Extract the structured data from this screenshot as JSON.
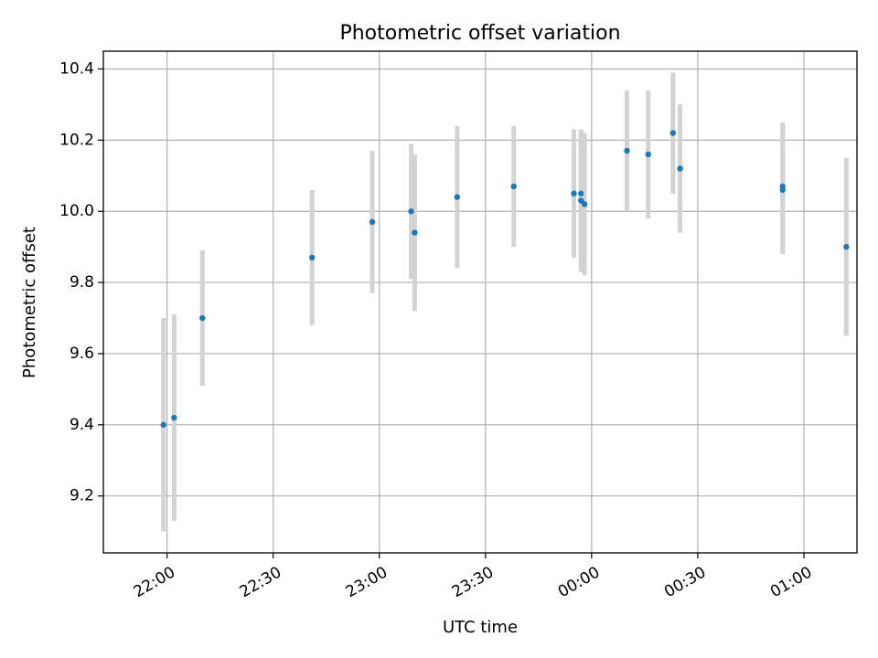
{
  "chart_data": {
    "type": "scatter",
    "title": "Photometric offset variation",
    "xlabel": "UTC time",
    "ylabel": "Photometric offset",
    "grid": true,
    "x_axis_type": "time",
    "xlim": [
      "21:42",
      "01:15"
    ],
    "ylim": [
      9.04,
      10.45
    ],
    "x_ticks": [
      "22:00",
      "22:30",
      "23:00",
      "23:30",
      "00:00",
      "00:30",
      "01:00"
    ],
    "y_ticks": [
      9.2,
      9.4,
      9.6,
      9.8,
      10.0,
      10.2,
      10.4
    ],
    "marker_color": "#1f77b4",
    "errorbar_color": "#d3d3d3",
    "series": [
      {
        "points": [
          {
            "x": "21:59",
            "y": 9.4,
            "err": 0.3
          },
          {
            "x": "22:02",
            "y": 9.42,
            "err": 0.29
          },
          {
            "x": "22:10",
            "y": 9.7,
            "err": 0.19
          },
          {
            "x": "22:41",
            "y": 9.87,
            "err": 0.19
          },
          {
            "x": "22:58",
            "y": 9.97,
            "err": 0.2
          },
          {
            "x": "23:09",
            "y": 10.0,
            "err": 0.19
          },
          {
            "x": "23:10",
            "y": 9.94,
            "err": 0.22
          },
          {
            "x": "23:22",
            "y": 10.04,
            "err": 0.2
          },
          {
            "x": "23:38",
            "y": 10.07,
            "err": 0.17
          },
          {
            "x": "23:55",
            "y": 10.05,
            "err": 0.18
          },
          {
            "x": "23:57",
            "y": 10.05,
            "err": 0.18
          },
          {
            "x": "23:57",
            "y": 10.03,
            "err": 0.2
          },
          {
            "x": "23:58",
            "y": 10.02,
            "err": 0.2
          },
          {
            "x": "00:10",
            "y": 10.17,
            "err": 0.17
          },
          {
            "x": "00:16",
            "y": 10.16,
            "err": 0.18
          },
          {
            "x": "00:23",
            "y": 10.22,
            "err": 0.17
          },
          {
            "x": "00:25",
            "y": 10.12,
            "err": 0.18
          },
          {
            "x": "00:25",
            "y": 10.12,
            "err": 0.18
          },
          {
            "x": "00:54",
            "y": 10.07,
            "err": 0.18
          },
          {
            "x": "00:54",
            "y": 10.06,
            "err": 0.18
          },
          {
            "x": "01:12",
            "y": 9.9,
            "err": 0.25
          }
        ]
      }
    ]
  }
}
